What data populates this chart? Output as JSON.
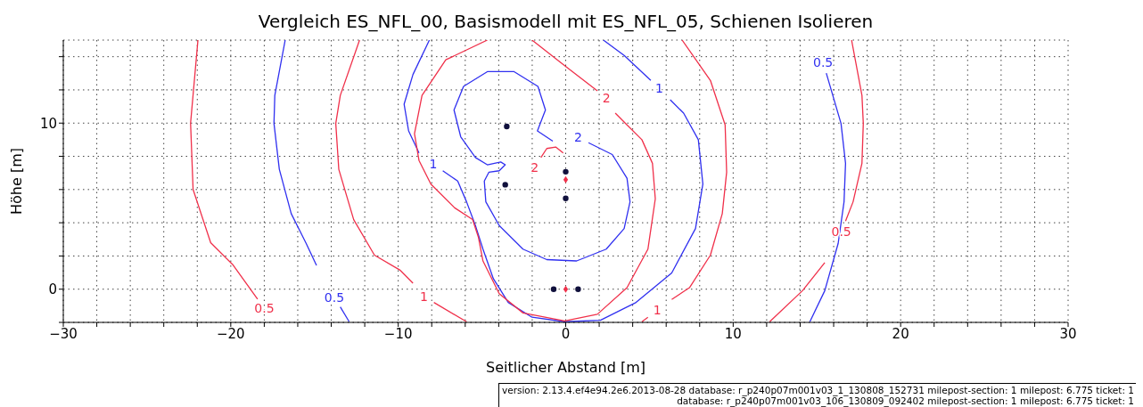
{
  "chart_data": {
    "type": "line",
    "title": "Vergleich ES_NFL_00, Basismodell mit ES_NFL_05, Schienen Isolieren",
    "xlabel": "Seitlicher Abstand [m]",
    "ylabel": "Höhe [m]",
    "xlim": [
      -30,
      30
    ],
    "ylim": [
      -2,
      15
    ],
    "xticks": [
      {
        "value": -30,
        "label": "−30"
      },
      {
        "value": -28,
        "label": null
      },
      {
        "value": -26,
        "label": null
      },
      {
        "value": -24,
        "label": null
      },
      {
        "value": -22,
        "label": null
      },
      {
        "value": -20,
        "label": "−20"
      },
      {
        "value": -18,
        "label": null
      },
      {
        "value": -16,
        "label": null
      },
      {
        "value": -14,
        "label": null
      },
      {
        "value": -12,
        "label": null
      },
      {
        "value": -10,
        "label": "−10"
      },
      {
        "value": -8,
        "label": null
      },
      {
        "value": -6,
        "label": null
      },
      {
        "value": -4,
        "label": null
      },
      {
        "value": -2,
        "label": null
      },
      0,
      {
        "value": 2,
        "label": null
      },
      {
        "value": 4,
        "label": null
      },
      {
        "value": 6,
        "label": null
      },
      {
        "value": 8,
        "label": null
      },
      10,
      {
        "value": 12,
        "label": null
      },
      {
        "value": 14,
        "label": null
      },
      {
        "value": 16,
        "label": null
      },
      {
        "value": 18,
        "label": null
      },
      20,
      {
        "value": 22,
        "label": null
      },
      {
        "value": 24,
        "label": null
      },
      {
        "value": 26,
        "label": null
      },
      {
        "value": 28,
        "label": null
      },
      30
    ],
    "yticks": [
      {
        "value": -2,
        "label": null
      },
      0,
      {
        "value": 2,
        "label": null
      },
      {
        "value": 4,
        "label": null
      },
      {
        "value": 6,
        "label": null
      },
      {
        "value": 8,
        "label": null
      },
      10,
      {
        "value": 12,
        "label": null
      },
      {
        "value": 14,
        "label": null
      }
    ],
    "grid": true,
    "line_style": "solid",
    "series": [
      {
        "name": "0.5",
        "color": "#f0304a",
        "x": [
          -18.4,
          -19.9,
          -21.2,
          -22.25,
          -22.4,
          -21.96
        ],
        "values": [
          -0.6,
          1.5,
          2.8,
          6,
          10,
          15
        ]
      },
      {
        "color": "#f0304a",
        "x": [
          12.18,
          14.14,
          15.47
        ],
        "values": [
          -1.96,
          -0.09,
          1.6
        ]
      },
      {
        "name": "0.5",
        "color": "#f0304a",
        "x": [
          16.71,
          17.16,
          17.69,
          17.77,
          17.69,
          17.07
        ],
        "values": [
          4.1,
          5.26,
          7.58,
          9.98,
          11.67,
          15
        ]
      },
      {
        "color": "#3030f0",
        "x": [
          -16.75,
          -17.37,
          -17.42,
          -17.1,
          -16.39,
          -15.5,
          -14.88
        ],
        "values": [
          15,
          11.67,
          9.98,
          7.22,
          4.55,
          2.76,
          1.43
        ]
      },
      {
        "name": "0.5",
        "color": "#3030f0",
        "x": [
          -13.46,
          -12.93
        ],
        "values": [
          -1.07,
          -1.96
        ]
      },
      {
        "name": "0.5",
        "color": "#3030f0",
        "x": [
          15.56,
          16.44,
          16.71,
          16.62,
          16.27,
          15.47,
          14.58
        ],
        "values": [
          13.01,
          9.98,
          7.58,
          5.26,
          2.76,
          -0.09,
          -1.96
        ]
      },
      {
        "color": "#f0304a",
        "x": [
          -12.31,
          -13.46,
          -13.73,
          -13.55,
          -12.66,
          -11.42,
          -9.91,
          -9.12
        ],
        "values": [
          15,
          11.67,
          9.98,
          7.22,
          4.19,
          2.05,
          1.16,
          0.36
        ]
      },
      {
        "name": "1",
        "color": "#f0304a",
        "x": [
          -7.87,
          -5.92
        ],
        "values": [
          -0.8,
          -1.96
        ]
      },
      {
        "color": "#f0304a",
        "x": [
          6.95,
          8.64,
          9.52,
          9.61,
          9.35,
          8.64,
          7.39,
          6.33
        ],
        "values": [
          15,
          12.57,
          9.89,
          7.04,
          4.55,
          2.05,
          0.09,
          -0.62
        ]
      },
      {
        "name": "1",
        "color": "#f0304a",
        "x": [
          4.91,
          4.55
        ],
        "values": [
          -1.69,
          -1.96
        ]
      },
      {
        "color": "#3030f0",
        "x": [
          -8.14,
          -9.12,
          -9.65,
          -9.38,
          -8.76
        ],
        "values": [
          15,
          12.93,
          11.14,
          9.53,
          8.2
        ]
      },
      {
        "name": "1",
        "color": "#3030f0",
        "x": [
          -7.34,
          -6.45,
          -5.92,
          -5.39,
          -4.94,
          -4.32,
          -3.43,
          -2.01,
          -0.06,
          2.07,
          4.2,
          6.33,
          7.75,
          8.19,
          7.92,
          7.04,
          6.24
        ],
        "values": [
          7.13,
          6.51,
          5.26,
          3.83,
          2.41,
          0.63,
          -0.8,
          -1.69,
          -1.96,
          -1.87,
          -0.8,
          0.98,
          3.65,
          6.33,
          9,
          10.6,
          11.41
        ]
      },
      {
        "name": "1",
        "color": "#3030f0",
        "x": [
          5.08,
          3.49,
          2.25
        ],
        "values": [
          12.57,
          14.08,
          15
        ]
      },
      {
        "color": "#f0304a",
        "x": [
          -4.68,
          -7.16,
          -8.58,
          -9.03,
          -8.76,
          -8.05,
          -6.63,
          -5.56,
          -5.21,
          -4.94,
          -3.97,
          -2.55,
          -0.06,
          1.89,
          3.66,
          4.91,
          5.35,
          5.18,
          4.55,
          3.66,
          2.96
        ],
        "values": [
          15,
          13.81,
          11.67,
          9.36,
          7.75,
          6.33,
          4.9,
          4.19,
          3.12,
          1.7,
          -0.27,
          -1.43,
          -1.91,
          -1.51,
          0.09,
          2.41,
          5.44,
          7.58,
          9,
          9.89,
          10.6
        ]
      },
      {
        "name": "2",
        "color": "#f0304a",
        "x": [
          1.89,
          -0.06,
          -2.01
        ],
        "values": [
          11.94,
          13.46,
          15
        ]
      },
      {
        "name": "2",
        "color": "#f0304a",
        "x": [
          -1.48,
          -1.13,
          -0.6,
          -0.15
        ],
        "values": [
          7.93,
          8.47,
          8.56,
          8.2
        ]
      },
      {
        "name": "2",
        "color": "#3030f0",
        "x": [
          1.36,
          2.78,
          3.66,
          3.84,
          3.49,
          2.42,
          0.65,
          -1.13,
          -2.55,
          -3.97,
          -4.77,
          -4.86,
          -4.59,
          -3.97,
          -3.61,
          -3.88,
          -4.68,
          -5.39,
          -6.27,
          -6.67,
          -6.1,
          -4.68,
          -3.08,
          -1.66,
          -1.21,
          -1.69,
          -0.77
        ],
        "values": [
          8.82,
          8.11,
          6.68,
          5.26,
          3.65,
          2.41,
          1.7,
          1.78,
          2.41,
          3.83,
          5.26,
          6.51,
          7.04,
          7.13,
          7.49,
          7.66,
          7.49,
          7.93,
          9.18,
          10.79,
          12.21,
          13.1,
          13.1,
          12.21,
          10.79,
          9.53,
          8.91
        ]
      },
      {
        "type": "scatter",
        "marker": "circle",
        "color": "#10103c",
        "x": [
          -3.52,
          -3.61,
          0,
          0,
          -0.72,
          0.74
        ],
        "values": [
          9.8,
          6.29,
          7.07,
          5.47,
          0,
          0
        ]
      },
      {
        "type": "scatter",
        "marker": "diamond",
        "color": "#f0304a",
        "x": [
          0,
          0
        ],
        "values": [
          6.6,
          0
        ]
      }
    ],
    "annotations": [
      "version: 2.13.4.ef4e94.2e6.2013-08-28 database: r_p240p07m001v03_1_130808_152731 milepost-section: 1 milepost: 6.775 ticket: 1",
      "database: r_p240p07m001v03_106_130809_092402 milepost-section: 1 milepost: 6.775 ticket: 1"
    ]
  }
}
